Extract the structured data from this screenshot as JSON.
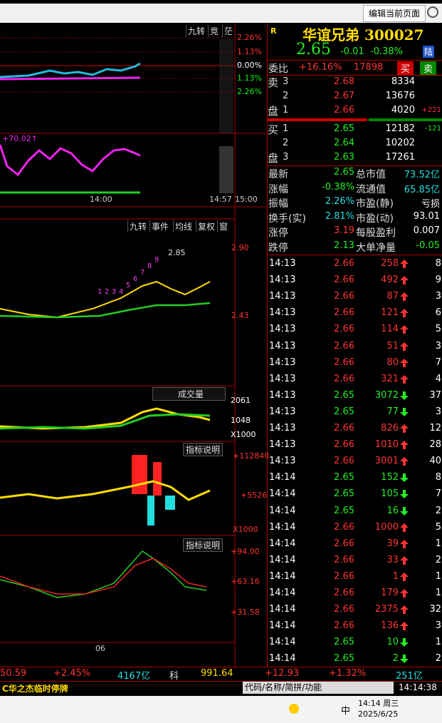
{
  "header": {
    "edit_button": "编辑当前页面"
  },
  "intraday": {
    "tools": [
      "九转",
      "竞",
      "茫"
    ],
    "pct_labels": [
      "2.26%",
      "1.13%",
      "0.00%",
      "1.13%",
      "2.26%"
    ],
    "indicator": "+70.02↑",
    "times": [
      "14:00",
      "14:57",
      "15:00"
    ]
  },
  "kline": {
    "tools": [
      "九转",
      "事件",
      "均线",
      "复权",
      "窗"
    ],
    "high_price": "2.90",
    "low_price": "2.43",
    "high_marker": "2.85",
    "nine_turn": [
      "1",
      "2",
      "3",
      "4",
      "5",
      "6",
      "7",
      "8",
      "9"
    ],
    "volume_title": "成交量",
    "volume_labels": [
      "2061",
      "1048",
      "X1000"
    ],
    "ind1_title": "指标说明",
    "ind1_labels": [
      "+112840",
      "+5526",
      "X1000"
    ],
    "ind2_title": "指标说明",
    "ind2_labels": [
      "+94.00",
      "+63.16",
      "+31.58"
    ],
    "date": "06"
  },
  "quote": {
    "flag": "R",
    "name": "华谊兄弟 300027",
    "price": "2.65",
    "change": "-0.01",
    "pct": "-0.38%",
    "badge": "陆"
  },
  "commission": {
    "label": "委比",
    "ratio": "+16.16%",
    "diff": "17898",
    "buy": "买",
    "sell": "卖"
  },
  "asks": {
    "side": [
      "卖",
      "盘"
    ],
    "rows": [
      {
        "level": "3",
        "price": "2.68",
        "volume": "8334"
      },
      {
        "level": "2",
        "price": "2.67",
        "volume": "13676"
      },
      {
        "level": "1",
        "price": "2.66",
        "volume": "4020",
        "change": "+221"
      }
    ]
  },
  "bids": {
    "side": [
      "买",
      "盘"
    ],
    "rows": [
      {
        "level": "1",
        "price": "2.65",
        "volume": "12182",
        "change": "-121"
      },
      {
        "level": "2",
        "price": "2.64",
        "volume": "10202"
      },
      {
        "level": "3",
        "price": "2.63",
        "volume": "17261"
      }
    ]
  },
  "stats": [
    [
      "最新",
      "2.65",
      "总市值",
      "73.52亿"
    ],
    [
      "涨幅",
      "-0.38%",
      "流通值",
      "65.85亿"
    ],
    [
      "振幅",
      "2.26%",
      "市盈(静)",
      "亏损"
    ],
    [
      "换手(实)",
      "2.81%",
      "市盈(动)",
      "93.01"
    ],
    [
      "涨停",
      "3.19",
      "每股盈利",
      "0.007"
    ],
    [
      "跌停",
      "2.13",
      "大单净量",
      "-0.05"
    ]
  ],
  "trades": [
    {
      "time": "14:13",
      "price": "2.66",
      "volume": "258",
      "dir": "up",
      "count": "8"
    },
    {
      "time": "14:13",
      "price": "2.66",
      "volume": "492",
      "dir": "up",
      "count": "9"
    },
    {
      "time": "14:13",
      "price": "2.66",
      "volume": "87",
      "dir": "up",
      "count": "3"
    },
    {
      "time": "14:13",
      "price": "2.66",
      "volume": "121",
      "dir": "up",
      "count": "6"
    },
    {
      "time": "14:13",
      "price": "2.66",
      "volume": "114",
      "dir": "up",
      "count": "5"
    },
    {
      "time": "14:13",
      "price": "2.66",
      "volume": "51",
      "dir": "up",
      "count": "3"
    },
    {
      "time": "14:13",
      "price": "2.66",
      "volume": "80",
      "dir": "up",
      "count": "7"
    },
    {
      "time": "14:13",
      "price": "2.66",
      "volume": "321",
      "dir": "up",
      "count": "4"
    },
    {
      "time": "14:13",
      "price": "2.65",
      "volume": "3072",
      "dir": "down",
      "count": "37"
    },
    {
      "time": "14:13",
      "price": "2.65",
      "volume": "77",
      "dir": "down",
      "count": "3"
    },
    {
      "time": "14:13",
      "price": "2.66",
      "volume": "826",
      "dir": "up",
      "count": "12"
    },
    {
      "time": "14:13",
      "price": "2.66",
      "volume": "1010",
      "dir": "up",
      "count": "28"
    },
    {
      "time": "14:13",
      "price": "2.66",
      "volume": "3001",
      "dir": "up",
      "count": "40"
    },
    {
      "time": "14:14",
      "price": "2.65",
      "volume": "152",
      "dir": "down",
      "count": "8"
    },
    {
      "time": "14:14",
      "price": "2.65",
      "volume": "105",
      "dir": "down",
      "count": "7"
    },
    {
      "time": "14:14",
      "price": "2.65",
      "volume": "16",
      "dir": "down",
      "count": "2"
    },
    {
      "time": "14:14",
      "price": "2.66",
      "volume": "1000",
      "dir": "up",
      "count": "5"
    },
    {
      "time": "14:14",
      "price": "2.66",
      "volume": "39",
      "dir": "up",
      "count": "1"
    },
    {
      "time": "14:14",
      "price": "2.66",
      "volume": "33",
      "dir": "up",
      "count": "2"
    },
    {
      "time": "14:14",
      "price": "2.66",
      "volume": "1",
      "dir": "up",
      "count": "1"
    },
    {
      "time": "14:14",
      "price": "2.66",
      "volume": "179",
      "dir": "up",
      "count": "1"
    },
    {
      "time": "14:14",
      "price": "2.66",
      "volume": "2375",
      "dir": "up",
      "count": "32"
    },
    {
      "time": "14:14",
      "price": "2.66",
      "volume": "136",
      "dir": "up",
      "count": "3"
    },
    {
      "time": "14:14",
      "price": "2.65",
      "volume": "10",
      "dir": "down",
      "count": "1"
    },
    {
      "time": "14:14",
      "price": "2.65",
      "volume": "2",
      "dir": "down",
      "count": "2"
    }
  ],
  "index_bar": [
    "50.59",
    "+2.45%",
    "4167亿",
    "科",
    "991.64",
    "+12.93",
    "+1.32%",
    "251亿"
  ],
  "status": {
    "notice": "C华之杰临时停牌",
    "search": "代码/名称/简拼/功能",
    "clock": "14:14:38"
  },
  "taskbar": {
    "ime": "中",
    "time": "14:14 周三",
    "date": "2025/6/25"
  }
}
